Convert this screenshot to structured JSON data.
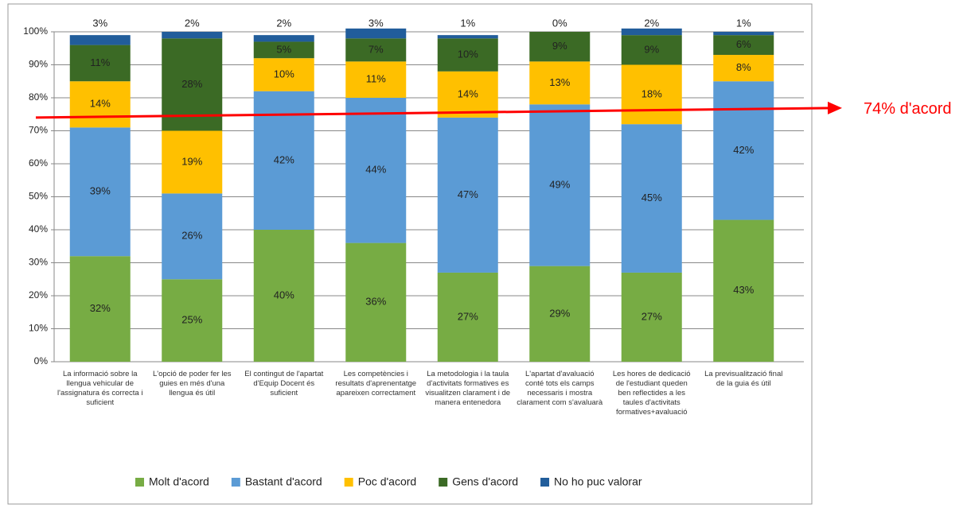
{
  "chart_data": {
    "type": "stacked_bar",
    "categories": [
      "La informació sobre la llengua vehicular de l'assignatura és correcta i suficient",
      "L'opció de poder fer les guies en més d'una llengua és útil",
      "El contingut de l'apartat d'Equip Docent és suficient",
      "Les competències i resultats d'aprenentatge apareixen correctament",
      "La metodologia i la taula d'activitats formatives es visualitzen clarament i de manera entenedora",
      "L'apartat d'avaluació conté tots els camps necessaris i mostra clarament com s'avaluarà",
      "Les hores de dedicació de l'estudiant queden ben reflectides a les taules d'activitats formatives+avaluació",
      "La previsualització final de la guia és útil"
    ],
    "series": [
      {
        "name": "Molt d'acord",
        "color": "#77ac44",
        "values": [
          32,
          25,
          40,
          36,
          27,
          29,
          27,
          43
        ],
        "value_labels": [
          "32%",
          "25%",
          "40%",
          "36%",
          "27%",
          "29%",
          "27%",
          "43%"
        ]
      },
      {
        "name": "Bastant d'acord",
        "color": "#5b9bd5",
        "values": [
          39,
          26,
          42,
          44,
          47,
          49,
          45,
          42
        ],
        "value_labels": [
          "39%",
          "26%",
          "42%",
          "44%",
          "47%",
          "49%",
          "45%",
          "42%"
        ]
      },
      {
        "name": "Poc d'acord",
        "color": "#ffc000",
        "values": [
          14,
          19,
          10,
          11,
          14,
          13,
          18,
          8
        ],
        "value_labels": [
          "14%",
          "19%",
          "10%",
          "11%",
          "14%",
          "13%",
          "18%",
          "8%"
        ]
      },
      {
        "name": "Gens d'acord",
        "color": "#3b6a25",
        "values": [
          11,
          28,
          5,
          7,
          10,
          9,
          9,
          6
        ],
        "value_labels": [
          "11%",
          "28%",
          "5%",
          "7%",
          "10%",
          "9%",
          "9%",
          "6%"
        ]
      },
      {
        "name": "No ho puc valorar",
        "color": "#215d9b",
        "values": [
          3,
          2,
          2,
          3,
          1,
          0,
          2,
          1
        ],
        "value_labels": [
          "3%",
          "2%",
          "2%",
          "3%",
          "1%",
          "0%",
          "2%",
          "1%"
        ]
      }
    ],
    "ylim": [
      0,
      100
    ],
    "yticks": [
      {
        "value": 0,
        "label": "0%"
      },
      {
        "value": 10,
        "label": "10%"
      },
      {
        "value": 20,
        "label": "20%"
      },
      {
        "value": 30,
        "label": "30%"
      },
      {
        "value": 40,
        "label": "40%"
      },
      {
        "value": 50,
        "label": "50%"
      },
      {
        "value": 60,
        "label": "60%"
      },
      {
        "value": 70,
        "label": "70%"
      },
      {
        "value": 80,
        "label": "80%"
      },
      {
        "value": 90,
        "label": "90%"
      },
      {
        "value": 100,
        "label": "100%"
      }
    ],
    "grid": true,
    "legend": "bottom",
    "annotation": {
      "text": "74% d'acord",
      "value": 74,
      "color": "#ff0000"
    }
  }
}
